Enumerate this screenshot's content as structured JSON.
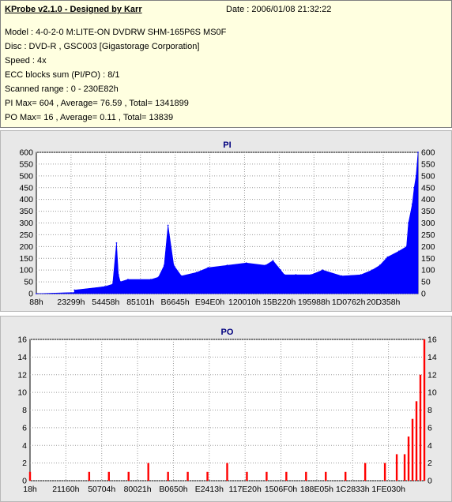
{
  "info": {
    "title": "KProbe v2.1.0 - Designed by Karr",
    "date": "Date : 2006/01/08 21:32:22",
    "lines": [
      "Model : 4-0-2-0 M:LITE-ON DVDRW SHM-165P6S MS0F",
      "Disc : DVD-R , GSC003 [Gigastorage Corporation]",
      "Speed : 4x",
      "ECC blocks sum (PI/PO) : 8/1",
      "Scanned range : 0 - 230E82h",
      "PI Max= 604 , Average= 76.59 , Total= 1341899",
      "PO Max= 16 , Average= 0.11 , Total= 13839"
    ]
  },
  "chart_data": [
    {
      "type": "area",
      "title": "PI",
      "color": "#0000ff",
      "ylim": [
        0,
        600
      ],
      "yticks": [
        0,
        50,
        100,
        150,
        200,
        250,
        300,
        350,
        400,
        450,
        500,
        550,
        600
      ],
      "xlim": [
        0,
        1
      ],
      "xtick_labels": [
        "88h",
        "23299h",
        "54458h",
        "85101h",
        "B6645h",
        "E94E0h",
        "120010h",
        "15B220h",
        "195988h",
        "1D0762h",
        "20D358h"
      ],
      "x": [
        0,
        0.1,
        0.1,
        0.18,
        0.2,
        0.21,
        0.215,
        0.22,
        0.24,
        0.3,
        0.32,
        0.335,
        0.345,
        0.36,
        0.38,
        0.42,
        0.45,
        0.5,
        0.55,
        0.6,
        0.62,
        0.64,
        0.65,
        0.68,
        0.72,
        0.75,
        0.8,
        0.85,
        0.88,
        0.9,
        0.92,
        0.95,
        0.97,
        0.975,
        0.985,
        0.99,
        0.995,
        1.0
      ],
      "values": [
        0,
        5,
        15,
        30,
        40,
        215,
        80,
        50,
        60,
        60,
        70,
        120,
        290,
        120,
        75,
        90,
        110,
        120,
        130,
        120,
        140,
        100,
        80,
        80,
        80,
        100,
        75,
        80,
        100,
        120,
        155,
        180,
        200,
        300,
        380,
        450,
        500,
        600
      ]
    },
    {
      "type": "bar",
      "title": "PO",
      "color": "#ff0000",
      "ylim": [
        0,
        16
      ],
      "yticks": [
        0,
        2,
        4,
        6,
        8,
        10,
        12,
        14,
        16
      ],
      "xlim": [
        0,
        1
      ],
      "xtick_labels": [
        "18h",
        "21160h",
        "50704h",
        "80021h",
        "B0650h",
        "E2413h",
        "117E20h",
        "1506F0h",
        "188E05h",
        "1C2833h",
        "1FE030h"
      ],
      "x": [
        0,
        0.15,
        0.2,
        0.25,
        0.3,
        0.35,
        0.4,
        0.45,
        0.5,
        0.55,
        0.6,
        0.65,
        0.7,
        0.75,
        0.8,
        0.85,
        0.9,
        0.93,
        0.95,
        0.96,
        0.97,
        0.98,
        0.99,
        1.0
      ],
      "values": [
        1,
        1,
        1,
        1,
        2,
        1,
        1,
        1,
        2,
        1,
        1,
        1,
        1,
        1,
        1,
        2,
        2,
        3,
        3,
        5,
        7,
        9,
        12,
        16
      ]
    }
  ]
}
